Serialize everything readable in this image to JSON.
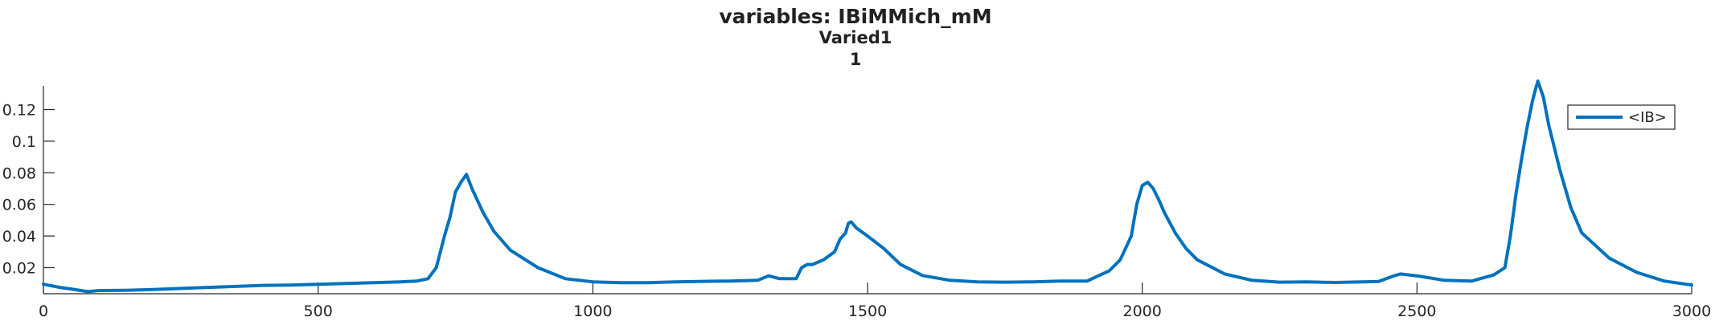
{
  "chart_data": {
    "type": "line",
    "title": "variables: IBiMMich_mM",
    "subtitle": "Varied1",
    "subtitle2": "1",
    "xlabel": "",
    "ylabel": "",
    "xlim": [
      0,
      3000
    ],
    "ylim": [
      0.0035,
      0.135
    ],
    "x_ticks": [
      0,
      500,
      1000,
      1500,
      2000,
      2500,
      3000
    ],
    "x_tick_labels": [
      "0",
      "500",
      "1000",
      "1500",
      "2000",
      "2500",
      "3000"
    ],
    "y_ticks": [
      0.02,
      0.04,
      0.06,
      0.08,
      0.1,
      0.12
    ],
    "y_tick_labels": [
      "0.02",
      "0.04",
      "0.06",
      "0.08",
      "0.1",
      "0.12"
    ],
    "grid": false,
    "legend_position": "top-right",
    "colors": {
      "line": "#0072BD",
      "axis": "#262626"
    },
    "series": [
      {
        "name": "<IB>",
        "x": [
          0,
          30,
          60,
          80,
          100,
          150,
          200,
          300,
          400,
          450,
          500,
          550,
          600,
          650,
          680,
          700,
          715,
          730,
          740,
          750,
          760,
          770,
          780,
          800,
          820,
          850,
          900,
          950,
          1000,
          1050,
          1100,
          1150,
          1200,
          1250,
          1300,
          1320,
          1340,
          1370,
          1380,
          1390,
          1400,
          1420,
          1440,
          1450,
          1460,
          1465,
          1470,
          1480,
          1500,
          1530,
          1560,
          1600,
          1650,
          1700,
          1750,
          1800,
          1850,
          1900,
          1920,
          1940,
          1960,
          1980,
          1990,
          2000,
          2010,
          2020,
          2030,
          2040,
          2060,
          2080,
          2100,
          2150,
          2200,
          2250,
          2300,
          2350,
          2400,
          2430,
          2460,
          2470,
          2500,
          2550,
          2600,
          2640,
          2660,
          2670,
          2680,
          2690,
          2700,
          2710,
          2715,
          2720,
          2730,
          2740,
          2760,
          2780,
          2800,
          2850,
          2900,
          2950,
          3000
        ],
        "y": [
          0.0095,
          0.0075,
          0.006,
          0.0048,
          0.0055,
          0.0057,
          0.0062,
          0.0075,
          0.0088,
          0.009,
          0.0095,
          0.01,
          0.0105,
          0.011,
          0.0115,
          0.013,
          0.02,
          0.04,
          0.052,
          0.068,
          0.074,
          0.079,
          0.07,
          0.055,
          0.043,
          0.031,
          0.02,
          0.013,
          0.011,
          0.0105,
          0.0105,
          0.011,
          0.0113,
          0.0115,
          0.012,
          0.0148,
          0.013,
          0.013,
          0.02,
          0.022,
          0.022,
          0.025,
          0.03,
          0.038,
          0.042,
          0.048,
          0.049,
          0.045,
          0.04,
          0.032,
          0.022,
          0.015,
          0.012,
          0.011,
          0.0108,
          0.011,
          0.0115,
          0.0115,
          0.0148,
          0.018,
          0.025,
          0.04,
          0.06,
          0.072,
          0.074,
          0.07,
          0.063,
          0.055,
          0.042,
          0.032,
          0.025,
          0.016,
          0.012,
          0.0108,
          0.011,
          0.0106,
          0.011,
          0.0112,
          0.015,
          0.016,
          0.0148,
          0.012,
          0.0115,
          0.0155,
          0.02,
          0.04,
          0.066,
          0.088,
          0.108,
          0.125,
          0.132,
          0.138,
          0.128,
          0.11,
          0.082,
          0.058,
          0.042,
          0.026,
          0.017,
          0.0115,
          0.009
        ]
      }
    ]
  }
}
